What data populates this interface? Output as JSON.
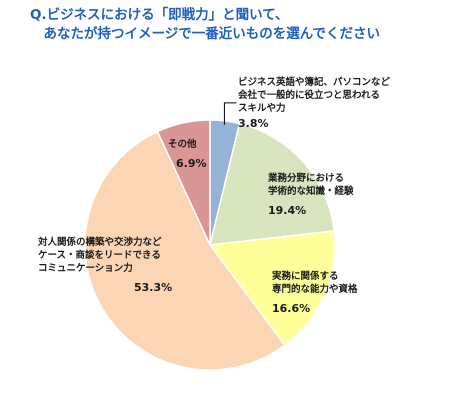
{
  "chart_data": {
    "type": "pie",
    "title_lines": [
      "Q.ビジネスにおける「即戦力」と聞いて、",
      "　あなたが持つイメージで一番近いものを選んでください"
    ],
    "slices": [
      {
        "label_lines": [
          "ビジネス英語や簿記、パソコンなど",
          "会社で一般的に役立つと思われる",
          "スキルや力"
        ],
        "value": 3.8,
        "value_label": "3.8%",
        "color": "#95b3d7"
      },
      {
        "label_lines": [
          "業務分野における",
          "学術的な知識・経験"
        ],
        "value": 19.4,
        "value_label": "19.4%",
        "color": "#d7e4bd"
      },
      {
        "label_lines": [
          "実務に関係する",
          "専門的な能力や資格"
        ],
        "value": 16.6,
        "value_label": "16.6%",
        "color": "#ffff99"
      },
      {
        "label_lines": [
          "対人関係の構築や交渉力など",
          "ケース・商談をリードできる",
          "コミュニケーション力"
        ],
        "value": 53.3,
        "value_label": "53.3%",
        "color": "#fcd5b5"
      },
      {
        "label_lines": [
          "その他"
        ],
        "value": 6.9,
        "value_label": "6.9%",
        "color": "#d99694"
      }
    ],
    "title_color": "#1f5fbf",
    "legend": "none"
  }
}
